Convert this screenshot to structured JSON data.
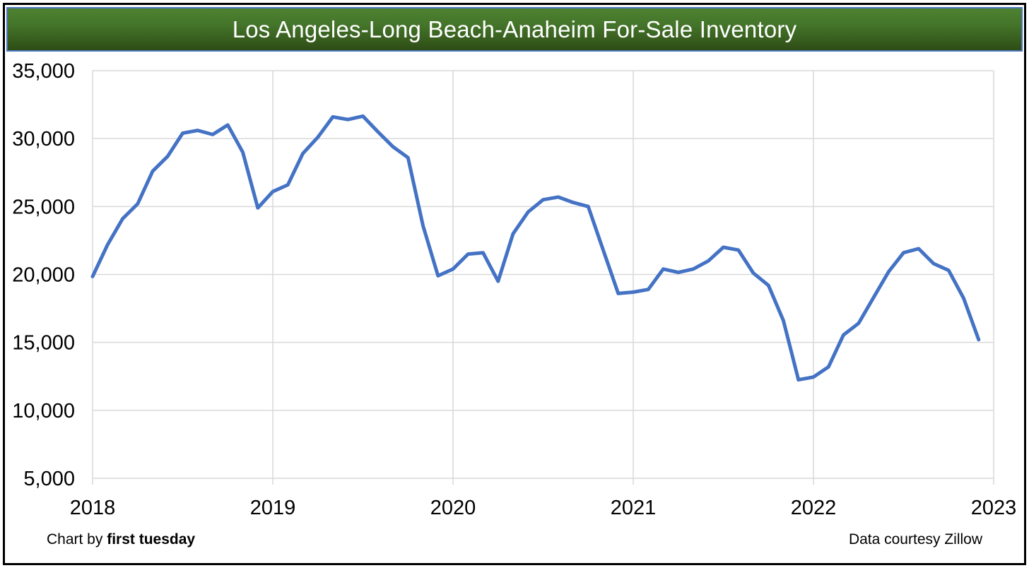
{
  "header": {
    "title": "Los Angeles-Long Beach-Anaheim For-Sale Inventory"
  },
  "chart_data": {
    "type": "line",
    "title": "Los Angeles-Long Beach-Anaheim For-Sale Inventory",
    "x_unit": "month",
    "x": [
      "2018-01",
      "2018-02",
      "2018-03",
      "2018-04",
      "2018-05",
      "2018-06",
      "2018-07",
      "2018-08",
      "2018-09",
      "2018-10",
      "2018-11",
      "2018-12",
      "2019-01",
      "2019-02",
      "2019-03",
      "2019-04",
      "2019-05",
      "2019-06",
      "2019-07",
      "2019-08",
      "2019-09",
      "2019-10",
      "2019-11",
      "2019-12",
      "2020-01",
      "2020-02",
      "2020-03",
      "2020-04",
      "2020-05",
      "2020-06",
      "2020-07",
      "2020-08",
      "2020-09",
      "2020-10",
      "2020-11",
      "2020-12",
      "2021-01",
      "2021-02",
      "2021-03",
      "2021-04",
      "2021-05",
      "2021-06",
      "2021-07",
      "2021-08",
      "2021-09",
      "2021-10",
      "2021-11",
      "2021-12",
      "2022-01",
      "2022-02",
      "2022-03",
      "2022-04",
      "2022-05",
      "2022-06",
      "2022-07",
      "2022-08",
      "2022-09",
      "2022-10",
      "2022-11",
      "2022-12"
    ],
    "series": [
      {
        "name": "For-sale inventory",
        "color": "#4472C4",
        "values": [
          19850,
          22200,
          24100,
          25200,
          27600,
          28700,
          30400,
          30600,
          30300,
          31000,
          29000,
          24900,
          26100,
          26600,
          28900,
          30100,
          31600,
          31400,
          31650,
          30500,
          29400,
          28600,
          23600,
          19900,
          20400,
          21500,
          21600,
          19500,
          23000,
          24600,
          25500,
          25700,
          25300,
          25000,
          21800,
          18600,
          18700,
          18900,
          20400,
          20150,
          20400,
          21000,
          22000,
          21800,
          20100,
          19200,
          16600,
          12250,
          12450,
          13200,
          15550,
          16400,
          18300,
          20200,
          21600,
          21900,
          20800,
          20300,
          18250,
          15200
        ]
      }
    ],
    "ylim": [
      5000,
      35000
    ],
    "yticks": [
      35000,
      30000,
      25000,
      20000,
      15000,
      10000,
      5000
    ],
    "ytick_labels": [
      "35,000",
      "30,000",
      "25,000",
      "20,000",
      "15,000",
      "10,000",
      "5,000"
    ],
    "xtick_labels": [
      "2018",
      "2019",
      "2020",
      "2021",
      "2022",
      "2023"
    ],
    "grid": true,
    "legend": "none"
  },
  "footer": {
    "left_prefix": "Chart by ",
    "left_brand": "first tuesday",
    "right": "Data courtesy Zillow"
  },
  "colors": {
    "accent_line": "#4472C4",
    "gridline": "#D9D9D9",
    "axis_text": "#000000",
    "title_bar_top": "#4E8230",
    "title_bar_bottom": "#2E4C15",
    "title_bar_border": "#4A76B8",
    "page_border": "#000000",
    "title_text": "#FFFFFF"
  }
}
